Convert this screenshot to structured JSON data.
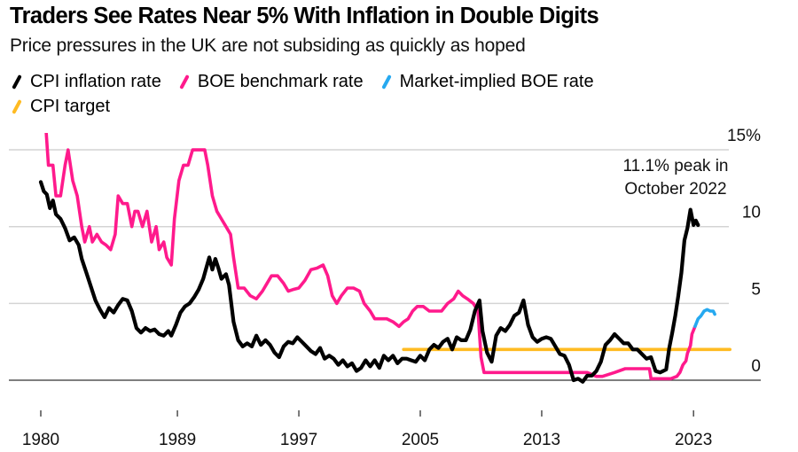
{
  "header": {
    "title": "Traders See Rates Near 5% With Inflation in Double Digits",
    "subtitle": "Price pressures in the UK are not subsiding as quickly as hoped"
  },
  "legend": [
    {
      "label": "CPI inflation rate",
      "color": "#000000",
      "icon": "slash-swatch-icon"
    },
    {
      "label": "BOE benchmark rate",
      "color": "#ff1a8c",
      "icon": "slash-swatch-icon"
    },
    {
      "label": "Market-implied BOE rate",
      "color": "#26a9f0",
      "icon": "slash-swatch-icon"
    },
    {
      "label": "CPI target",
      "color": "#ffbb22",
      "icon": "slash-swatch-icon"
    }
  ],
  "chart_data": {
    "type": "line",
    "title": "Traders See Rates Near 5% With Inflation in Double Digits",
    "subtitle": "Price pressures in the UK are not subsiding as quickly as hoped",
    "xlabel": "",
    "ylabel": "",
    "xlim": [
      1980,
      2025.5
    ],
    "ylim": [
      0,
      15
    ],
    "x_ticks": [
      1980,
      1989,
      1997,
      2005,
      2013,
      2023
    ],
    "x_tick_labels": [
      "1980",
      "1989",
      "1997",
      "2005",
      "2013",
      "2023"
    ],
    "y_ticks": [
      0,
      5,
      10,
      15
    ],
    "y_tick_labels": [
      "0",
      "5",
      "10",
      "15%"
    ],
    "y_axis_side": "right",
    "grid": true,
    "legend_position": "top-left",
    "annotations": [
      {
        "text_lines": [
          "11.1% peak in",
          "October 2022"
        ],
        "x": 2022.8,
        "y": 11.1
      }
    ],
    "series": [
      {
        "name": "CPI inflation rate",
        "color": "#000000",
        "points": [
          [
            1980.0,
            12.9
          ],
          [
            1980.2,
            12.3
          ],
          [
            1980.4,
            12.1
          ],
          [
            1980.6,
            11.2
          ],
          [
            1980.8,
            11.7
          ],
          [
            1981.0,
            10.8
          ],
          [
            1981.3,
            10.5
          ],
          [
            1981.6,
            9.9
          ],
          [
            1981.9,
            9.1
          ],
          [
            1982.2,
            9.3
          ],
          [
            1982.5,
            8.8
          ],
          [
            1982.7,
            7.9
          ],
          [
            1983.0,
            7.0
          ],
          [
            1983.3,
            6.1
          ],
          [
            1983.6,
            5.2
          ],
          [
            1983.9,
            4.6
          ],
          [
            1984.2,
            4.1
          ],
          [
            1984.5,
            4.7
          ],
          [
            1984.8,
            4.4
          ],
          [
            1985.1,
            4.9
          ],
          [
            1985.4,
            5.3
          ],
          [
            1985.7,
            5.2
          ],
          [
            1986.0,
            4.5
          ],
          [
            1986.3,
            3.4
          ],
          [
            1986.6,
            3.1
          ],
          [
            1986.9,
            3.4
          ],
          [
            1987.2,
            3.2
          ],
          [
            1987.5,
            3.3
          ],
          [
            1987.8,
            3.0
          ],
          [
            1988.1,
            2.9
          ],
          [
            1988.4,
            3.2
          ],
          [
            1988.6,
            2.9
          ],
          [
            1988.9,
            3.6
          ],
          [
            1989.2,
            4.4
          ],
          [
            1989.5,
            4.8
          ],
          [
            1989.8,
            5.0
          ],
          [
            1990.1,
            5.4
          ],
          [
            1990.4,
            5.9
          ],
          [
            1990.7,
            6.6
          ],
          [
            1990.9,
            7.3
          ],
          [
            1991.1,
            8.0
          ],
          [
            1991.3,
            7.2
          ],
          [
            1991.5,
            7.9
          ],
          [
            1991.7,
            7.3
          ],
          [
            1991.9,
            6.6
          ],
          [
            1992.2,
            6.9
          ],
          [
            1992.4,
            6.2
          ],
          [
            1992.7,
            3.8
          ],
          [
            1993.0,
            2.6
          ],
          [
            1993.3,
            2.2
          ],
          [
            1993.6,
            2.4
          ],
          [
            1993.9,
            2.2
          ],
          [
            1994.2,
            2.9
          ],
          [
            1994.5,
            2.3
          ],
          [
            1994.8,
            2.6
          ],
          [
            1995.1,
            2.3
          ],
          [
            1995.4,
            1.8
          ],
          [
            1995.7,
            1.5
          ],
          [
            1996.0,
            2.2
          ],
          [
            1996.3,
            2.5
          ],
          [
            1996.6,
            2.4
          ],
          [
            1996.9,
            2.8
          ],
          [
            1997.2,
            2.5
          ],
          [
            1997.5,
            2.2
          ],
          [
            1997.8,
            1.9
          ],
          [
            1998.1,
            1.7
          ],
          [
            1998.4,
            2.1
          ],
          [
            1998.7,
            1.4
          ],
          [
            1999.0,
            1.6
          ],
          [
            1999.3,
            1.4
          ],
          [
            1999.6,
            1.0
          ],
          [
            1999.9,
            1.3
          ],
          [
            2000.2,
            0.9
          ],
          [
            2000.5,
            1.1
          ],
          [
            2000.8,
            0.6
          ],
          [
            2001.1,
            0.8
          ],
          [
            2001.4,
            1.3
          ],
          [
            2001.7,
            0.9
          ],
          [
            2002.0,
            1.3
          ],
          [
            2002.3,
            0.8
          ],
          [
            2002.6,
            1.6
          ],
          [
            2002.9,
            1.3
          ],
          [
            2003.2,
            1.6
          ],
          [
            2003.5,
            1.1
          ],
          [
            2003.8,
            1.4
          ],
          [
            2004.1,
            1.4
          ],
          [
            2004.4,
            1.3
          ],
          [
            2004.7,
            1.2
          ],
          [
            2005.0,
            1.6
          ],
          [
            2005.3,
            1.3
          ],
          [
            2005.6,
            2.0
          ],
          [
            2005.9,
            2.3
          ],
          [
            2006.2,
            2.1
          ],
          [
            2006.5,
            2.5
          ],
          [
            2006.8,
            2.7
          ],
          [
            2007.1,
            2.0
          ],
          [
            2007.4,
            2.8
          ],
          [
            2007.7,
            2.6
          ],
          [
            2008.0,
            2.6
          ],
          [
            2008.3,
            3.3
          ],
          [
            2008.6,
            4.5
          ],
          [
            2008.9,
            5.2
          ],
          [
            2009.1,
            3.2
          ],
          [
            2009.4,
            1.8
          ],
          [
            2009.7,
            1.2
          ],
          [
            2010.0,
            2.9
          ],
          [
            2010.3,
            3.4
          ],
          [
            2010.6,
            3.2
          ],
          [
            2010.9,
            3.6
          ],
          [
            2011.2,
            4.2
          ],
          [
            2011.5,
            4.4
          ],
          [
            2011.8,
            5.2
          ],
          [
            2012.1,
            3.6
          ],
          [
            2012.4,
            2.8
          ],
          [
            2012.7,
            2.5
          ],
          [
            2013.0,
            2.7
          ],
          [
            2013.3,
            2.8
          ],
          [
            2013.6,
            2.7
          ],
          [
            2013.9,
            2.2
          ],
          [
            2014.2,
            1.7
          ],
          [
            2014.5,
            1.6
          ],
          [
            2014.8,
            1.0
          ],
          [
            2015.1,
            0.0
          ],
          [
            2015.4,
            0.1
          ],
          [
            2015.7,
            -0.1
          ],
          [
            2016.0,
            0.3
          ],
          [
            2016.3,
            0.3
          ],
          [
            2016.6,
            0.6
          ],
          [
            2016.9,
            1.2
          ],
          [
            2017.2,
            2.3
          ],
          [
            2017.5,
            2.6
          ],
          [
            2017.8,
            3.0
          ],
          [
            2018.1,
            2.7
          ],
          [
            2018.4,
            2.4
          ],
          [
            2018.7,
            2.4
          ],
          [
            2019.0,
            2.0
          ],
          [
            2019.3,
            2.0
          ],
          [
            2019.6,
            1.7
          ],
          [
            2019.9,
            1.4
          ],
          [
            2020.2,
            1.5
          ],
          [
            2020.5,
            0.6
          ],
          [
            2020.8,
            0.5
          ],
          [
            2021.0,
            0.6
          ],
          [
            2021.2,
            0.7
          ],
          [
            2021.4,
            2.1
          ],
          [
            2021.6,
            3.1
          ],
          [
            2021.8,
            4.2
          ],
          [
            2022.0,
            5.5
          ],
          [
            2022.2,
            7.0
          ],
          [
            2022.4,
            9.1
          ],
          [
            2022.6,
            9.9
          ],
          [
            2022.8,
            11.1
          ],
          [
            2023.0,
            10.1
          ],
          [
            2023.15,
            10.4
          ],
          [
            2023.3,
            10.1
          ]
        ]
      },
      {
        "name": "BOE benchmark rate",
        "color": "#ff1a8c",
        "points": [
          [
            1980.0,
            17.0
          ],
          [
            1980.3,
            17.0
          ],
          [
            1980.5,
            14.0
          ],
          [
            1980.8,
            14.0
          ],
          [
            1981.0,
            12.0
          ],
          [
            1981.3,
            12.0
          ],
          [
            1981.6,
            14.0
          ],
          [
            1981.8,
            15.0
          ],
          [
            1982.1,
            13.0
          ],
          [
            1982.4,
            12.0
          ],
          [
            1982.7,
            10.0
          ],
          [
            1982.9,
            9.0
          ],
          [
            1983.2,
            10.0
          ],
          [
            1983.4,
            9.0
          ],
          [
            1983.7,
            9.5
          ],
          [
            1984.0,
            9.0
          ],
          [
            1984.3,
            8.8
          ],
          [
            1984.6,
            8.5
          ],
          [
            1984.9,
            9.5
          ],
          [
            1985.1,
            12.0
          ],
          [
            1985.4,
            11.5
          ],
          [
            1985.7,
            11.5
          ],
          [
            1986.0,
            10.0
          ],
          [
            1986.2,
            11.0
          ],
          [
            1986.4,
            11.0
          ],
          [
            1986.7,
            10.0
          ],
          [
            1987.0,
            11.0
          ],
          [
            1987.3,
            9.0
          ],
          [
            1987.6,
            10.0
          ],
          [
            1987.8,
            8.5
          ],
          [
            1988.1,
            9.0
          ],
          [
            1988.3,
            8.0
          ],
          [
            1988.6,
            7.5
          ],
          [
            1988.8,
            10.5
          ],
          [
            1989.1,
            13.0
          ],
          [
            1989.4,
            14.0
          ],
          [
            1989.7,
            14.0
          ],
          [
            1990.0,
            15.0
          ],
          [
            1990.4,
            15.0
          ],
          [
            1990.8,
            15.0
          ],
          [
            1991.0,
            14.0
          ],
          [
            1991.3,
            12.0
          ],
          [
            1991.6,
            11.0
          ],
          [
            1991.9,
            10.5
          ],
          [
            1992.2,
            10.0
          ],
          [
            1992.5,
            9.5
          ],
          [
            1992.7,
            8.0
          ],
          [
            1993.0,
            6.0
          ],
          [
            1993.4,
            6.0
          ],
          [
            1993.8,
            5.5
          ],
          [
            1994.2,
            5.3
          ],
          [
            1994.6,
            5.8
          ],
          [
            1994.9,
            6.3
          ],
          [
            1995.2,
            6.8
          ],
          [
            1995.6,
            6.8
          ],
          [
            1996.0,
            6.3
          ],
          [
            1996.3,
            5.8
          ],
          [
            1996.6,
            5.9
          ],
          [
            1997.0,
            6.0
          ],
          [
            1997.4,
            6.5
          ],
          [
            1997.8,
            7.2
          ],
          [
            1998.2,
            7.3
          ],
          [
            1998.6,
            7.5
          ],
          [
            1998.9,
            6.8
          ],
          [
            1999.2,
            5.5
          ],
          [
            1999.5,
            5.0
          ],
          [
            1999.8,
            5.5
          ],
          [
            2000.2,
            6.0
          ],
          [
            2000.6,
            6.0
          ],
          [
            2001.0,
            5.8
          ],
          [
            2001.3,
            5.0
          ],
          [
            2001.7,
            4.5
          ],
          [
            2002.0,
            4.0
          ],
          [
            2002.4,
            4.0
          ],
          [
            2002.8,
            4.0
          ],
          [
            2003.2,
            3.8
          ],
          [
            2003.6,
            3.5
          ],
          [
            2003.9,
            3.8
          ],
          [
            2004.2,
            4.0
          ],
          [
            2004.5,
            4.5
          ],
          [
            2004.8,
            4.8
          ],
          [
            2005.2,
            4.8
          ],
          [
            2005.6,
            4.5
          ],
          [
            2006.0,
            4.5
          ],
          [
            2006.4,
            4.5
          ],
          [
            2006.8,
            5.0
          ],
          [
            2007.2,
            5.3
          ],
          [
            2007.5,
            5.8
          ],
          [
            2007.8,
            5.5
          ],
          [
            2008.1,
            5.3
          ],
          [
            2008.5,
            5.0
          ],
          [
            2008.8,
            4.5
          ],
          [
            2009.0,
            1.5
          ],
          [
            2009.2,
            0.5
          ],
          [
            2010.0,
            0.5
          ],
          [
            2012.0,
            0.5
          ],
          [
            2014.0,
            0.5
          ],
          [
            2016.0,
            0.5
          ],
          [
            2016.6,
            0.25
          ],
          [
            2017.0,
            0.25
          ],
          [
            2017.8,
            0.5
          ],
          [
            2018.5,
            0.75
          ],
          [
            2019.5,
            0.75
          ],
          [
            2020.1,
            0.75
          ],
          [
            2020.2,
            0.1
          ],
          [
            2021.5,
            0.1
          ],
          [
            2021.9,
            0.25
          ],
          [
            2022.1,
            0.5
          ],
          [
            2022.3,
            1.0
          ],
          [
            2022.5,
            1.25
          ],
          [
            2022.6,
            1.75
          ],
          [
            2022.8,
            2.25
          ],
          [
            2022.9,
            3.0
          ],
          [
            2023.1,
            3.5
          ]
        ]
      },
      {
        "name": "Market-implied BOE rate",
        "color": "#26a9f0",
        "points": [
          [
            2023.1,
            3.5
          ],
          [
            2023.3,
            4.0
          ],
          [
            2023.5,
            4.2
          ],
          [
            2023.7,
            4.5
          ],
          [
            2023.9,
            4.6
          ],
          [
            2024.1,
            4.5
          ],
          [
            2024.3,
            4.5
          ],
          [
            2024.4,
            4.3
          ]
        ]
      },
      {
        "name": "CPI target",
        "color": "#ffbb22",
        "points": [
          [
            2003.9,
            2.0
          ],
          [
            2025.4,
            2.0
          ]
        ]
      }
    ]
  }
}
